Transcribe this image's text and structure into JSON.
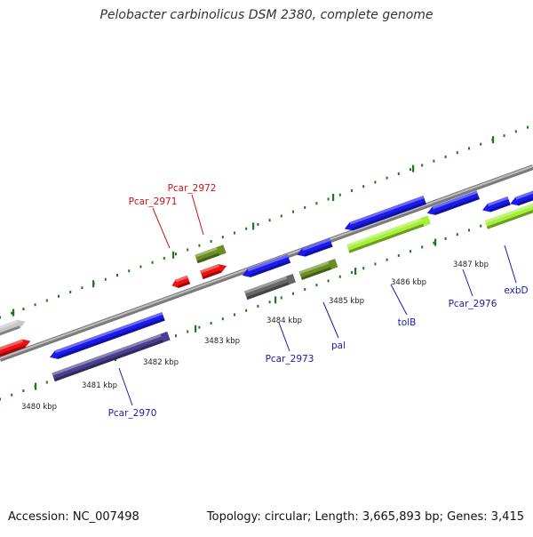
{
  "title": "Pelobacter carbinolicus DSM 2380, complete genome",
  "footer": {
    "accession": "Accession: NC_007498",
    "summary": "Topology: circular; Length: 3,665,893 bp; Genes: 3,415"
  },
  "colors": {
    "backbone": "#8a8a8a",
    "ticks": "#1a7a1a",
    "gene_blue": "#1a1aee",
    "gene_red": "#ee1111",
    "gene_olive": "#6b8e23",
    "gene_lime": "#a6f03a",
    "gene_gray": "#666666",
    "gene_light": "#c8c8c8",
    "gene_purple": "#4a3f8f",
    "label_blue": "#1a1aaa",
    "label_red": "#cc1111"
  },
  "scale_labels": [
    "3480 kbp",
    "3481 kbp",
    "3482 kbp",
    "3483 kbp",
    "3484 kbp",
    "3485 kbp",
    "3486 kbp",
    "3487 kbp"
  ],
  "genes": [
    {
      "id": "g1",
      "color": "gene_light"
    },
    {
      "id": "g2",
      "color": "gene_red"
    },
    {
      "id": "g3",
      "color": "gene_blue"
    },
    {
      "id": "g4",
      "color": "gene_purple"
    },
    {
      "id": "g5",
      "color": "gene_red"
    },
    {
      "id": "g6",
      "color": "gene_olive"
    },
    {
      "id": "g7",
      "color": "gene_red"
    },
    {
      "id": "g8",
      "color": "gene_blue"
    },
    {
      "id": "g9",
      "color": "gene_gray"
    },
    {
      "id": "g10",
      "color": "gene_blue"
    },
    {
      "id": "g11",
      "color": "gene_olive"
    },
    {
      "id": "g12",
      "color": "gene_blue"
    },
    {
      "id": "g13",
      "color": "gene_lime"
    },
    {
      "id": "g14",
      "color": "gene_blue"
    },
    {
      "id": "g15",
      "color": "gene_blue"
    },
    {
      "id": "g16",
      "color": "gene_blue"
    },
    {
      "id": "g17",
      "color": "gene_lime"
    }
  ],
  "gene_labels": [
    {
      "text": "Pcar_2972",
      "color": "label_red"
    },
    {
      "text": "Pcar_2971",
      "color": "label_red"
    },
    {
      "text": "Pcar_2970",
      "color": "label_blue"
    },
    {
      "text": "Pcar_2973",
      "color": "label_blue"
    },
    {
      "text": "pal",
      "color": "label_blue"
    },
    {
      "text": "tolB",
      "color": "label_blue"
    },
    {
      "text": "Pcar_2976",
      "color": "label_blue"
    },
    {
      "text": "exbD",
      "color": "label_blue"
    }
  ]
}
